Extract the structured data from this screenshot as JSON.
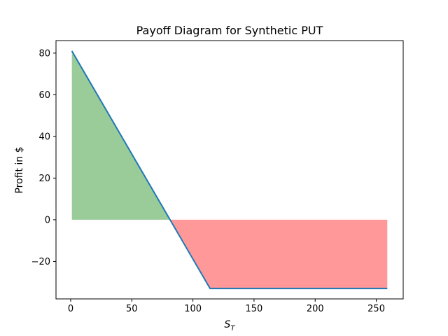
{
  "chart_data": {
    "type": "line",
    "title": "Payoff Diagram for Synthetic PUT",
    "xlabel_main": "S",
    "xlabel_sub": "T",
    "ylabel": "Profit in $",
    "xlim": [
      -12,
      272
    ],
    "ylim": [
      -38,
      86
    ],
    "x_ticks": [
      0,
      50,
      100,
      150,
      200,
      250
    ],
    "x_tick_labels": [
      "0",
      "50",
      "100",
      "150",
      "200",
      "250"
    ],
    "y_ticks": [
      -20,
      0,
      20,
      40,
      60,
      80
    ],
    "y_tick_labels": [
      "−20",
      "0",
      "20",
      "40",
      "60",
      "80"
    ],
    "grid": false,
    "series": [
      {
        "x": [
          1,
          114,
          259
        ],
        "y": [
          81,
          -33,
          -33
        ],
        "color": "#1f77b4"
      }
    ],
    "fill": {
      "profit_color": "#99cc99",
      "loss_color": "#ff9999"
    }
  }
}
